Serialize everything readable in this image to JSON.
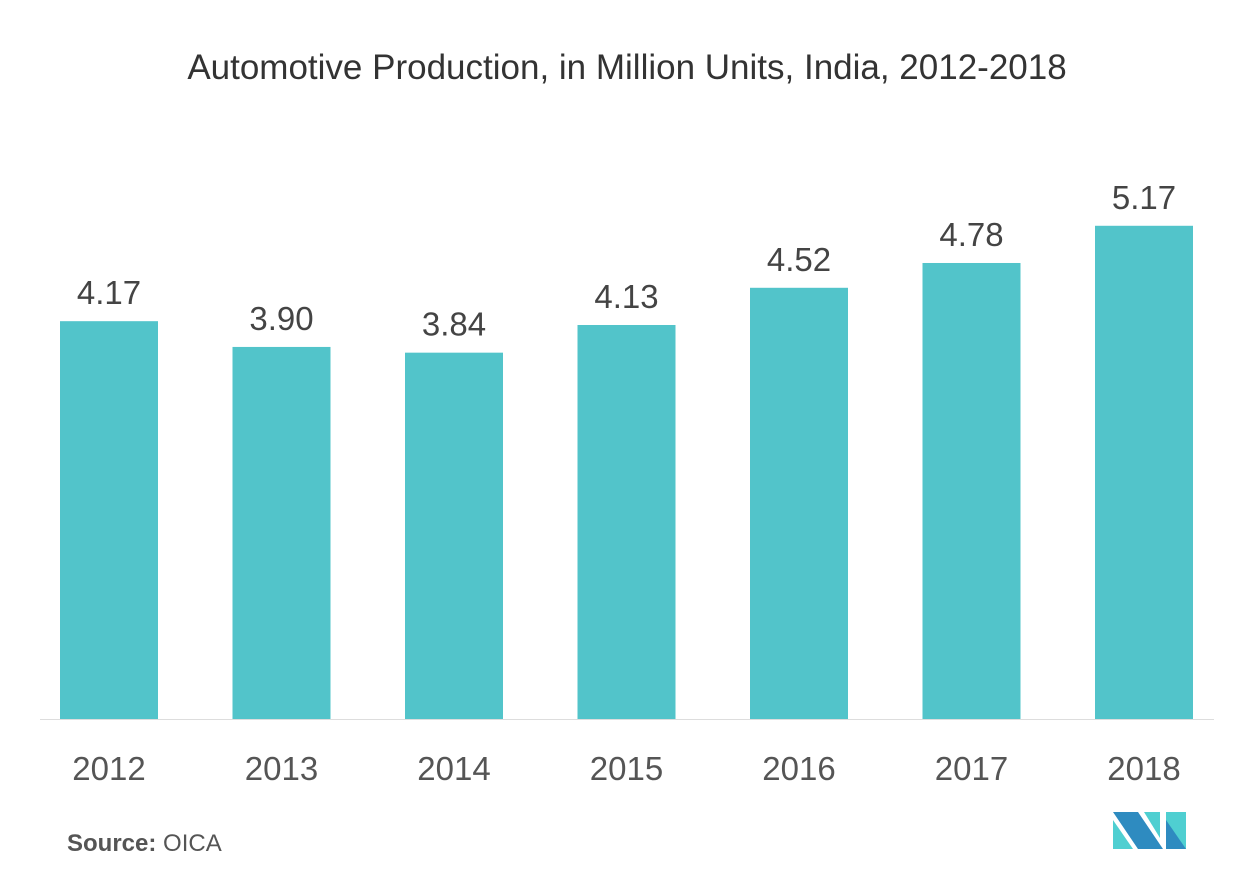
{
  "chart_data": {
    "type": "bar",
    "title": "Automotive Production, in Million Units, India, 2012-2018",
    "categories": [
      "2012",
      "2013",
      "2014",
      "2015",
      "2016",
      "2017",
      "2018"
    ],
    "values": [
      4.17,
      3.9,
      3.84,
      4.13,
      4.52,
      4.78,
      5.17
    ],
    "value_labels": [
      "4.17",
      "3.90",
      "3.84",
      "4.13",
      "4.52",
      "4.78",
      "5.17"
    ],
    "xlabel": "",
    "ylabel": "",
    "ylim": [
      0,
      5.2
    ],
    "grid": false,
    "bar_color": "#52C4CA"
  },
  "source": {
    "label": "Source:",
    "value": "OICA"
  },
  "logo": {
    "colors": [
      "#2E8BC0",
      "#4FCFD1"
    ]
  }
}
